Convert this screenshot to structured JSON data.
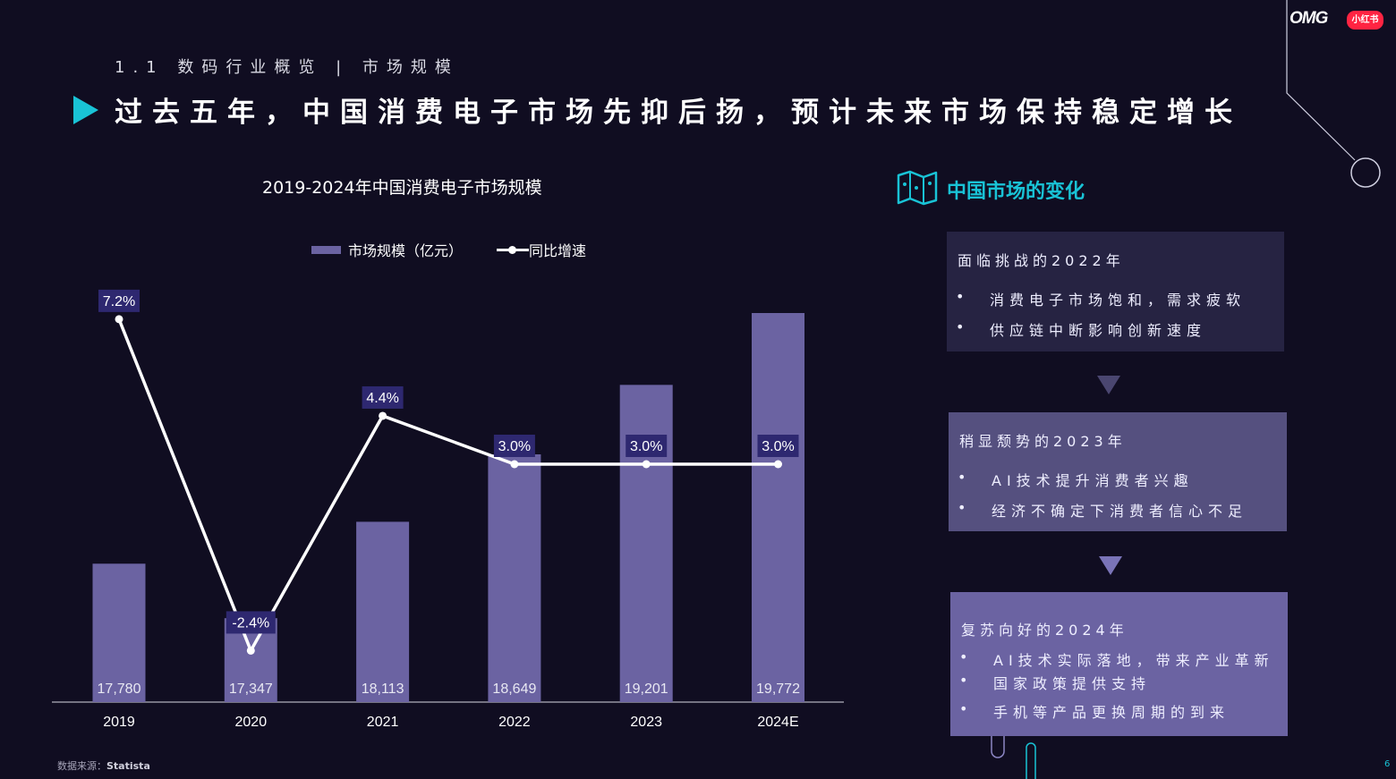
{
  "header": {
    "section": "1.1 数码行业概览 | 市场规模",
    "headline": "过去五年，中国消费电子市场先抑后扬，预计未来市场保持稳定增长"
  },
  "logos": {
    "omg": "OMG",
    "xhs": "小红书"
  },
  "colors": {
    "background": "#100d21",
    "bar": "#6b63a2",
    "accent": "#19c3d6",
    "label_bg": "#2e2870",
    "line": "#ffffff"
  },
  "chart_data": {
    "type": "bar",
    "title": "2019-2024年中国消费电子市场规模",
    "categories": [
      "2019",
      "2020",
      "2021",
      "2022",
      "2023",
      "2024E"
    ],
    "series": [
      {
        "name": "市场规模（亿元）",
        "type": "bar",
        "values": [
          17780,
          17347,
          18113,
          18649,
          19201,
          19772
        ]
      },
      {
        "name": "同比增速",
        "type": "line",
        "values": [
          7.2,
          -2.4,
          4.4,
          3.0,
          3.0,
          3.0
        ]
      }
    ],
    "bar_labels": [
      "17,780",
      "17,347",
      "18,113",
      "18,649",
      "19,201",
      "19,772"
    ],
    "line_labels": [
      "7.2%",
      "-2.4%",
      "4.4%",
      "3.0%",
      "3.0%",
      "3.0%"
    ],
    "legend": [
      "市场规模（亿元）",
      "同比增速"
    ],
    "legend_position": "top",
    "grid": false
  },
  "source": {
    "label": "数据来源：",
    "value": "Statista"
  },
  "right_panel": {
    "title": "中国市场的变化",
    "cards": [
      {
        "title": "面临挑战的2022年",
        "items": [
          "消费电子市场饱和，需求疲软",
          "供应链中断影响创新速度"
        ]
      },
      {
        "title": "稍显颓势的2023年",
        "items": [
          "AI技术提升消费者兴趣",
          "经济不确定下消费者信心不足"
        ]
      },
      {
        "title": "复苏向好的2024年",
        "items": [
          "AI技术实际落地，带来产业革新",
          "国家政策提供支持",
          "手机等产品更换周期的到来"
        ]
      }
    ]
  },
  "page_number": "6"
}
